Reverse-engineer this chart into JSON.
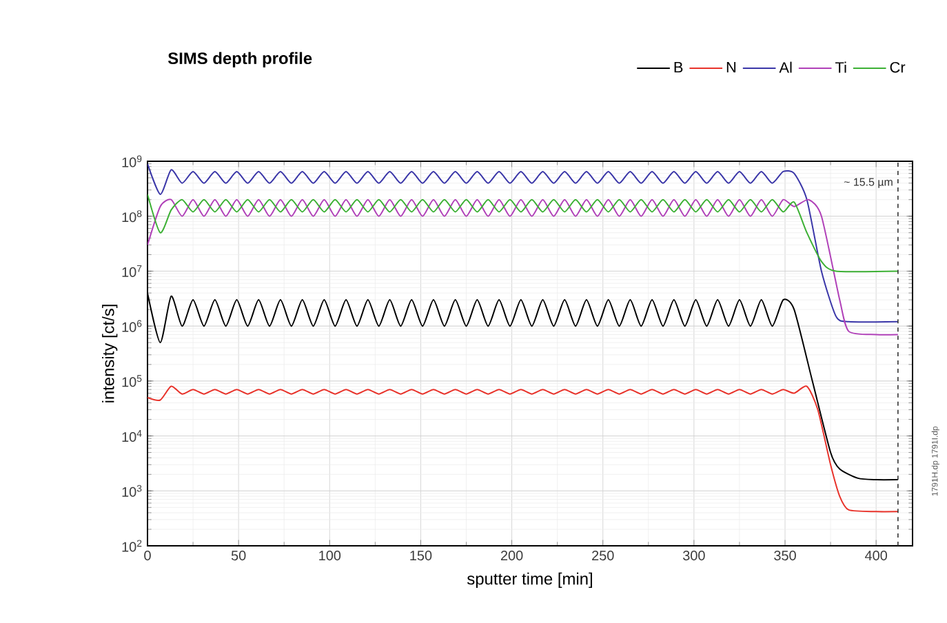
{
  "chart_data": {
    "type": "line",
    "title": "SIMS depth profile",
    "xlabel": "sputter time [min]",
    "ylabel": "intensity [ct/s]",
    "log": true,
    "grid": true,
    "legend": "top",
    "line_style": "solid",
    "xlim": [
      0,
      420
    ],
    "xticks": [
      0,
      50,
      100,
      150,
      200,
      250,
      300,
      350,
      400
    ],
    "ylim": [
      100,
      1000000000
    ],
    "yticks": [
      {
        "value": 100,
        "label": "10$^{2}$"
      },
      {
        "value": 1000,
        "label": "10$^{3}$"
      },
      {
        "value": 10000,
        "label": "10$^{4}$"
      },
      {
        "value": 100000,
        "label": "10$^{5}$"
      },
      {
        "value": 1000000,
        "label": "10$^{6}$"
      },
      {
        "value": 10000000,
        "label": "10$^{7}$"
      },
      {
        "value": 100000000,
        "label": "10$^{8}$"
      },
      {
        "value": 1000000000,
        "label": "10$^{9}$"
      }
    ],
    "ref_lines": [
      {
        "axis": "x",
        "value": 412,
        "label": "~ 15.5 µm",
        "line_style": "dashed",
        "color": "#333333"
      }
    ],
    "annotations": [
      "1791H.dp 1791I.dp"
    ],
    "series": [
      {
        "name": "B",
        "color": "#000000",
        "x": [
          0,
          7,
          13,
          19,
          25,
          31,
          37,
          43,
          49,
          55,
          61,
          67,
          73,
          79,
          85,
          91,
          97,
          103,
          109,
          115,
          121,
          127,
          133,
          139,
          145,
          151,
          157,
          163,
          169,
          175,
          181,
          187,
          193,
          199,
          205,
          211,
          217,
          223,
          229,
          235,
          241,
          247,
          253,
          259,
          265,
          271,
          277,
          283,
          289,
          295,
          301,
          307,
          313,
          319,
          325,
          331,
          337,
          343,
          349,
          355,
          365,
          375,
          380,
          390,
          400,
          412
        ],
        "values": [
          4000000.0,
          500000.0,
          3500000.0,
          1000000.0,
          3000000.0,
          1000000.0,
          3000000.0,
          1000000.0,
          3000000.0,
          1000000.0,
          3000000.0,
          1000000.0,
          3000000.0,
          1000000.0,
          3000000.0,
          1000000.0,
          3000000.0,
          1000000.0,
          3000000.0,
          1000000.0,
          3000000.0,
          1000000.0,
          3000000.0,
          1000000.0,
          3000000.0,
          1000000.0,
          3000000.0,
          1000000.0,
          3000000.0,
          1000000.0,
          3000000.0,
          1000000.0,
          3000000.0,
          1000000.0,
          3000000.0,
          1000000.0,
          3000000.0,
          1000000.0,
          3000000.0,
          1000000.0,
          3000000.0,
          1000000.0,
          3000000.0,
          1000000.0,
          3000000.0,
          1000000.0,
          3000000.0,
          1000000.0,
          3000000.0,
          1000000.0,
          3000000.0,
          1000000.0,
          3000000.0,
          1000000.0,
          3000000.0,
          1000000.0,
          3000000.0,
          1000000.0,
          3000000.0,
          2000000.0,
          100000.0,
          5000.0,
          2500.0,
          1700.0,
          1600.0,
          1600.0
        ]
      },
      {
        "name": "N",
        "color": "#e8322a",
        "x": [
          0,
          7,
          13,
          19,
          25,
          31,
          37,
          43,
          49,
          55,
          61,
          67,
          73,
          79,
          85,
          91,
          97,
          103,
          109,
          115,
          121,
          127,
          133,
          139,
          145,
          151,
          157,
          163,
          169,
          175,
          181,
          187,
          193,
          199,
          205,
          211,
          217,
          223,
          229,
          235,
          241,
          247,
          253,
          259,
          265,
          271,
          277,
          283,
          289,
          295,
          301,
          307,
          313,
          319,
          325,
          331,
          337,
          343,
          349,
          355,
          362,
          368,
          375,
          380,
          385,
          400,
          412
        ],
        "values": [
          50000.0,
          45000.0,
          80000.0,
          58000.0,
          70000.0,
          58000.0,
          70000.0,
          58000.0,
          70000.0,
          58000.0,
          70000.0,
          58000.0,
          70000.0,
          58000.0,
          70000.0,
          58000.0,
          70000.0,
          58000.0,
          70000.0,
          58000.0,
          70000.0,
          58000.0,
          70000.0,
          58000.0,
          70000.0,
          58000.0,
          70000.0,
          58000.0,
          70000.0,
          58000.0,
          70000.0,
          58000.0,
          70000.0,
          58000.0,
          70000.0,
          58000.0,
          70000.0,
          58000.0,
          70000.0,
          58000.0,
          70000.0,
          58000.0,
          70000.0,
          58000.0,
          70000.0,
          58000.0,
          70000.0,
          58000.0,
          70000.0,
          58000.0,
          70000.0,
          58000.0,
          70000.0,
          58000.0,
          70000.0,
          58000.0,
          70000.0,
          58000.0,
          70000.0,
          60000.0,
          80000.0,
          30000.0,
          3000.0,
          800.0,
          450.0,
          420.0,
          420.0
        ]
      },
      {
        "name": "Al",
        "color": "#3a36a8",
        "x": [
          0,
          7,
          13,
          19,
          25,
          31,
          37,
          43,
          49,
          55,
          61,
          67,
          73,
          79,
          85,
          91,
          97,
          103,
          109,
          115,
          121,
          127,
          133,
          139,
          145,
          151,
          157,
          163,
          169,
          175,
          181,
          187,
          193,
          199,
          205,
          211,
          217,
          223,
          229,
          235,
          241,
          247,
          253,
          259,
          265,
          271,
          277,
          283,
          289,
          295,
          301,
          307,
          313,
          319,
          325,
          331,
          337,
          343,
          349,
          355,
          362,
          370,
          378,
          385,
          412
        ],
        "values": [
          900000000.0,
          250000000.0,
          700000000.0,
          400000000.0,
          650000000.0,
          400000000.0,
          650000000.0,
          400000000.0,
          650000000.0,
          400000000.0,
          650000000.0,
          400000000.0,
          650000000.0,
          400000000.0,
          650000000.0,
          400000000.0,
          650000000.0,
          400000000.0,
          650000000.0,
          400000000.0,
          650000000.0,
          400000000.0,
          650000000.0,
          400000000.0,
          650000000.0,
          400000000.0,
          650000000.0,
          400000000.0,
          650000000.0,
          400000000.0,
          650000000.0,
          400000000.0,
          650000000.0,
          400000000.0,
          650000000.0,
          400000000.0,
          650000000.0,
          400000000.0,
          650000000.0,
          400000000.0,
          650000000.0,
          400000000.0,
          650000000.0,
          400000000.0,
          650000000.0,
          400000000.0,
          650000000.0,
          400000000.0,
          650000000.0,
          400000000.0,
          650000000.0,
          400000000.0,
          650000000.0,
          400000000.0,
          650000000.0,
          400000000.0,
          650000000.0,
          400000000.0,
          650000000.0,
          600000000.0,
          200000000.0,
          10000000.0,
          1500000.0,
          1200000.0,
          1200000.0
        ]
      },
      {
        "name": "Ti",
        "color": "#b040b8",
        "x": [
          0,
          7,
          13,
          19,
          25,
          31,
          37,
          43,
          49,
          55,
          61,
          67,
          73,
          79,
          85,
          91,
          97,
          103,
          109,
          115,
          121,
          127,
          133,
          139,
          145,
          151,
          157,
          163,
          169,
          175,
          181,
          187,
          193,
          199,
          205,
          211,
          217,
          223,
          229,
          235,
          241,
          247,
          253,
          259,
          265,
          271,
          277,
          283,
          289,
          295,
          301,
          307,
          313,
          319,
          325,
          331,
          337,
          343,
          349,
          355,
          363,
          370,
          380,
          385,
          400,
          412
        ],
        "values": [
          30000000.0,
          150000000.0,
          200000000.0,
          100000000.0,
          200000000.0,
          100000000.0,
          200000000.0,
          100000000.0,
          200000000.0,
          100000000.0,
          200000000.0,
          100000000.0,
          200000000.0,
          100000000.0,
          200000000.0,
          100000000.0,
          200000000.0,
          100000000.0,
          200000000.0,
          100000000.0,
          200000000.0,
          100000000.0,
          200000000.0,
          100000000.0,
          200000000.0,
          100000000.0,
          200000000.0,
          100000000.0,
          200000000.0,
          100000000.0,
          200000000.0,
          100000000.0,
          200000000.0,
          100000000.0,
          200000000.0,
          100000000.0,
          200000000.0,
          100000000.0,
          200000000.0,
          100000000.0,
          200000000.0,
          100000000.0,
          200000000.0,
          100000000.0,
          200000000.0,
          100000000.0,
          200000000.0,
          100000000.0,
          200000000.0,
          100000000.0,
          200000000.0,
          100000000.0,
          200000000.0,
          100000000.0,
          200000000.0,
          100000000.0,
          200000000.0,
          100000000.0,
          200000000.0,
          150000000.0,
          200000000.0,
          100000000.0,
          3000000.0,
          800000.0,
          700000.0,
          700000.0
        ]
      },
      {
        "name": "Cr",
        "color": "#3cb034",
        "x": [
          0,
          7,
          13,
          19,
          25,
          31,
          37,
          43,
          49,
          55,
          61,
          67,
          73,
          79,
          85,
          91,
          97,
          103,
          109,
          115,
          121,
          127,
          133,
          139,
          145,
          151,
          157,
          163,
          169,
          175,
          181,
          187,
          193,
          199,
          205,
          211,
          217,
          223,
          229,
          235,
          241,
          247,
          253,
          259,
          265,
          271,
          277,
          283,
          289,
          295,
          301,
          307,
          313,
          319,
          325,
          331,
          337,
          343,
          349,
          355,
          362,
          370,
          378,
          412
        ],
        "values": [
          250000000.0,
          50000000.0,
          130000000.0,
          200000000.0,
          120000000.0,
          200000000.0,
          120000000.0,
          200000000.0,
          120000000.0,
          200000000.0,
          120000000.0,
          200000000.0,
          120000000.0,
          200000000.0,
          120000000.0,
          200000000.0,
          120000000.0,
          200000000.0,
          120000000.0,
          200000000.0,
          120000000.0,
          200000000.0,
          120000000.0,
          200000000.0,
          120000000.0,
          200000000.0,
          120000000.0,
          200000000.0,
          120000000.0,
          200000000.0,
          120000000.0,
          200000000.0,
          120000000.0,
          200000000.0,
          120000000.0,
          200000000.0,
          120000000.0,
          200000000.0,
          120000000.0,
          200000000.0,
          120000000.0,
          200000000.0,
          120000000.0,
          200000000.0,
          120000000.0,
          200000000.0,
          120000000.0,
          200000000.0,
          120000000.0,
          200000000.0,
          120000000.0,
          200000000.0,
          120000000.0,
          200000000.0,
          120000000.0,
          200000000.0,
          120000000.0,
          200000000.0,
          120000000.0,
          180000000.0,
          50000000.0,
          15000000.0,
          10000000.0,
          10000000.0
        ]
      }
    ]
  }
}
